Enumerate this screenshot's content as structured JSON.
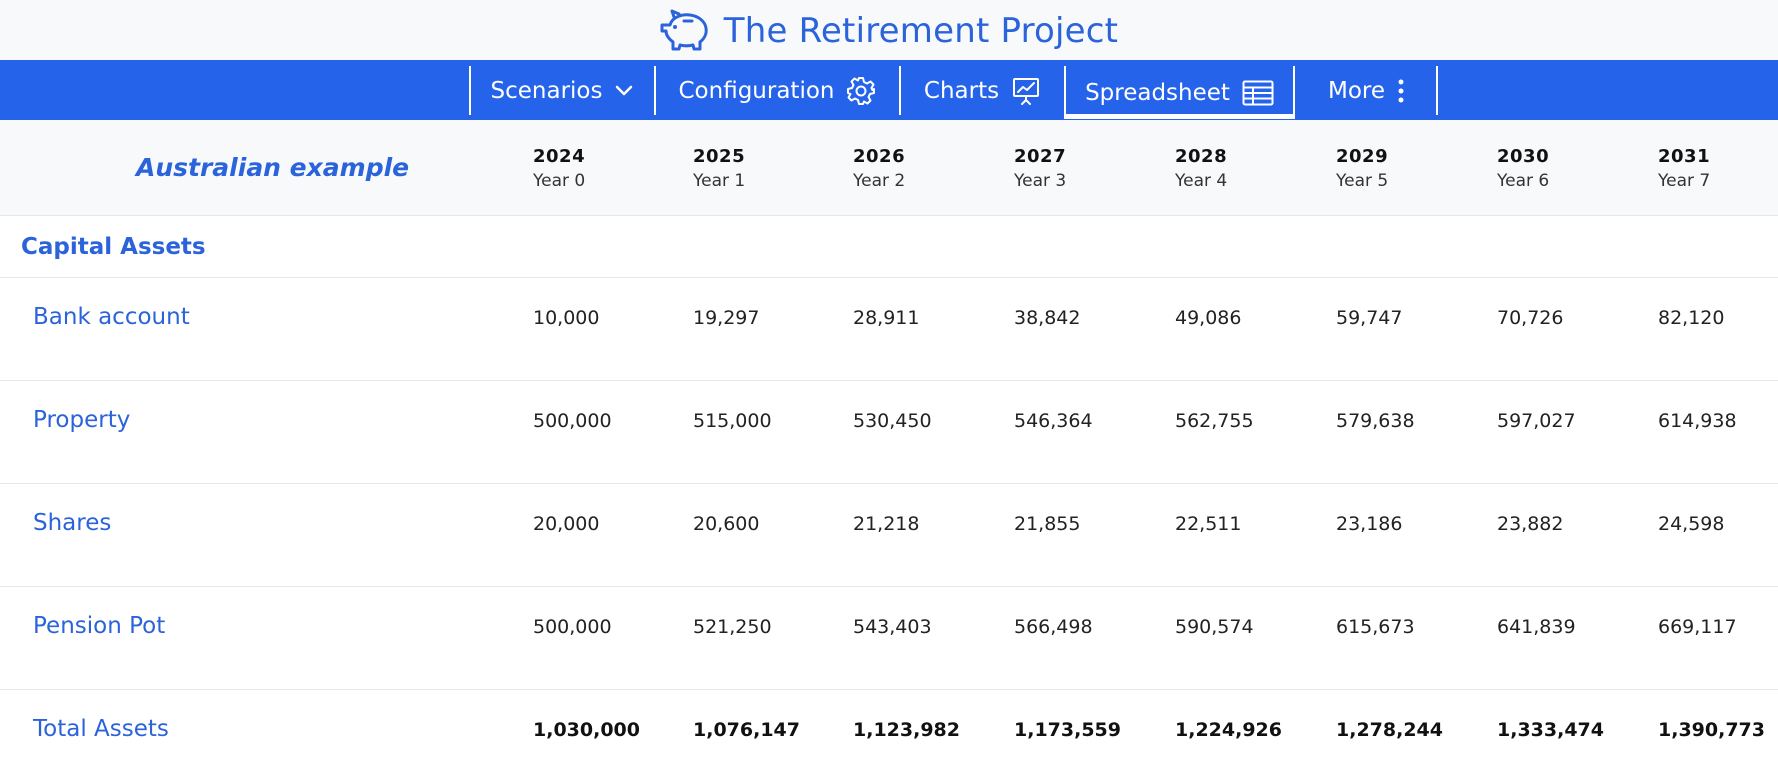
{
  "app": {
    "title": "The Retirement Project",
    "logo_icon": "piggy-bank-icon",
    "accent_color": "#2563eb"
  },
  "nav": {
    "items": [
      {
        "label": "Scenarios",
        "icon": "chevron-down-icon"
      },
      {
        "label": "Configuration",
        "icon": "gear-icon"
      },
      {
        "label": "Charts",
        "icon": "presentation-chart-icon"
      },
      {
        "label": "Spreadsheet",
        "icon": "table-icon",
        "active": true
      },
      {
        "label": "More",
        "icon": "vertical-dots-icon"
      }
    ]
  },
  "spreadsheet": {
    "scenario_name": "Australian example",
    "years": [
      {
        "year": "2024",
        "label": "Year 0"
      },
      {
        "year": "2025",
        "label": "Year 1"
      },
      {
        "year": "2026",
        "label": "Year 2"
      },
      {
        "year": "2027",
        "label": "Year 3"
      },
      {
        "year": "2028",
        "label": "Year 4"
      },
      {
        "year": "2029",
        "label": "Year 5"
      },
      {
        "year": "2030",
        "label": "Year 6"
      },
      {
        "year": "2031",
        "label": "Year 7"
      }
    ],
    "section_title": "Capital Assets",
    "rows": [
      {
        "label": "Bank account",
        "values": [
          "10,000",
          "19,297",
          "28,911",
          "38,842",
          "49,086",
          "59,747",
          "70,726",
          "82,120"
        ]
      },
      {
        "label": "Property",
        "values": [
          "500,000",
          "515,000",
          "530,450",
          "546,364",
          "562,755",
          "579,638",
          "597,027",
          "614,938"
        ]
      },
      {
        "label": "Shares",
        "values": [
          "20,000",
          "20,600",
          "21,218",
          "21,855",
          "22,511",
          "23,186",
          "23,882",
          "24,598"
        ]
      },
      {
        "label": "Pension Pot",
        "values": [
          "500,000",
          "521,250",
          "543,403",
          "566,498",
          "590,574",
          "615,673",
          "641,839",
          "669,117"
        ]
      },
      {
        "label": "Total Assets",
        "total": true,
        "values": [
          "1,030,000",
          "1,076,147",
          "1,123,982",
          "1,173,559",
          "1,224,926",
          "1,278,244",
          "1,333,474",
          "1,390,773"
        ]
      }
    ]
  }
}
